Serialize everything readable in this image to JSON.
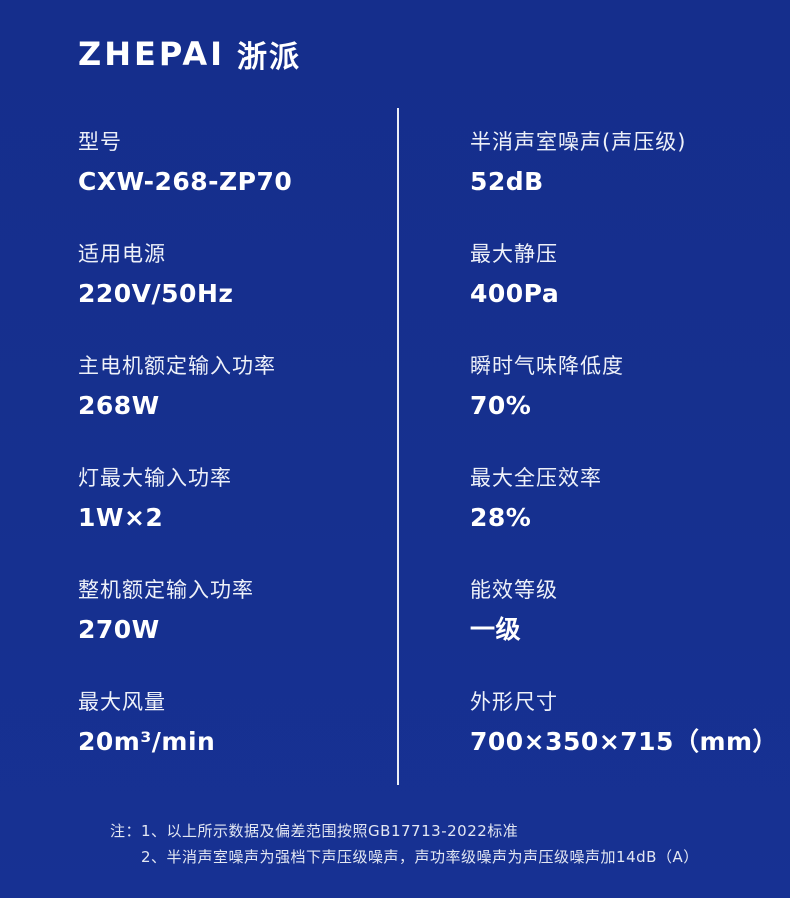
{
  "brand": {
    "logo_text": "ZHEPAI",
    "logo_cn": "浙派"
  },
  "specs": {
    "left": [
      {
        "label": "型号",
        "value": "CXW-268-ZP70"
      },
      {
        "label": "适用电源",
        "value": "220V/50Hz"
      },
      {
        "label": "主电机额定输入功率",
        "value": "268W"
      },
      {
        "label": "灯最大输入功率",
        "value": "1W×2"
      },
      {
        "label": "整机额定输入功率",
        "value": "270W"
      },
      {
        "label": "最大风量",
        "value": "20m³/min"
      }
    ],
    "right": [
      {
        "label": "半消声室噪声(声压级)",
        "value": "52dB"
      },
      {
        "label": "最大静压",
        "value": "400Pa"
      },
      {
        "label": "瞬时气味降低度",
        "value": "70%"
      },
      {
        "label": "最大全压效率",
        "value": "28%"
      },
      {
        "label": "能效等级",
        "value": "一级"
      },
      {
        "label": "外形尺寸",
        "value": "700×350×715（mm）"
      }
    ]
  },
  "notes": {
    "prefix": "注：",
    "items": [
      "1、以上所示数据及偏差范围按照GB17713-2022标准",
      "2、半消声室噪声为强档下声压级噪声，声功率级噪声为声压级噪声加14dB（A）"
    ]
  },
  "colors": {
    "background": "#16308F",
    "text": "#FFFFFF",
    "divider": "#FFFFFF"
  }
}
